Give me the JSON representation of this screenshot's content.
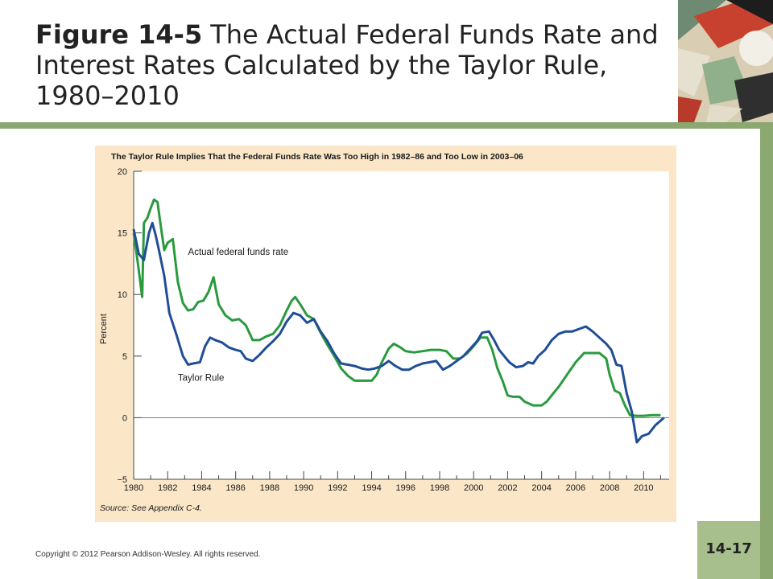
{
  "slide": {
    "figure_label": "Figure 14-5",
    "title": "The Actual Federal Funds Rate and Interest Rates Calculated by the Taylor Rule, 1980–2010",
    "page_number": "14-17",
    "copyright": "Copyright © 2012 Pearson Addison-Wesley. All rights reserved."
  },
  "colors": {
    "band": "#8aa870",
    "page_box": "#a6bf8c",
    "chart_bg": "#fbe7c8",
    "plot_bg": "#ffffff",
    "federal_funds": "#2a9a3e",
    "taylor": "#1f4e96"
  },
  "chart_data": {
    "type": "line",
    "title": "The Taylor Rule Implies That the Federal Funds Rate Was Too High in 1982–86 and Too Low in 2003–06",
    "xlabel": "",
    "ylabel": "Percent",
    "source": "Source: See Appendix C-4.",
    "xlim": [
      1980,
      2011.5
    ],
    "ylim": [
      -5,
      20
    ],
    "yticks": [
      -5,
      0,
      5,
      10,
      15,
      20
    ],
    "ytick_labels": [
      "−5",
      "0",
      "5",
      "10",
      "15",
      "20"
    ],
    "xticks": [
      1980,
      1982,
      1984,
      1986,
      1988,
      1990,
      1992,
      1994,
      1996,
      1998,
      2000,
      2002,
      2004,
      2006,
      2008,
      2010
    ],
    "xtick_labels": [
      "1980",
      "1982",
      "1984",
      "1986",
      "1988",
      "1990",
      "1992",
      "1994",
      "1996",
      "1998",
      "2000",
      "2002",
      "2004",
      "2006",
      "2008",
      "2010"
    ],
    "zero_line": true,
    "series": [
      {
        "name": "Actual federal funds rate",
        "color": "#2a9a3e",
        "points": [
          [
            1980.0,
            15.0
          ],
          [
            1980.25,
            12.5
          ],
          [
            1980.5,
            9.8
          ],
          [
            1980.6,
            15.8
          ],
          [
            1980.8,
            16.2
          ],
          [
            1981.0,
            17.0
          ],
          [
            1981.2,
            17.7
          ],
          [
            1981.4,
            17.5
          ],
          [
            1981.6,
            15.5
          ],
          [
            1981.8,
            13.6
          ],
          [
            1982.0,
            14.2
          ],
          [
            1982.3,
            14.5
          ],
          [
            1982.6,
            11.0
          ],
          [
            1982.9,
            9.3
          ],
          [
            1983.2,
            8.7
          ],
          [
            1983.5,
            8.8
          ],
          [
            1983.8,
            9.4
          ],
          [
            1984.1,
            9.5
          ],
          [
            1984.4,
            10.2
          ],
          [
            1984.7,
            11.4
          ],
          [
            1985.0,
            9.2
          ],
          [
            1985.4,
            8.3
          ],
          [
            1985.8,
            7.9
          ],
          [
            1986.2,
            8.0
          ],
          [
            1986.6,
            7.5
          ],
          [
            1987.0,
            6.3
          ],
          [
            1987.4,
            6.3
          ],
          [
            1987.8,
            6.6
          ],
          [
            1988.2,
            6.8
          ],
          [
            1988.6,
            7.5
          ],
          [
            1989.0,
            8.7
          ],
          [
            1989.3,
            9.5
          ],
          [
            1989.5,
            9.8
          ],
          [
            1989.8,
            9.2
          ],
          [
            1990.2,
            8.3
          ],
          [
            1990.6,
            8.0
          ],
          [
            1991.0,
            6.9
          ],
          [
            1991.4,
            5.9
          ],
          [
            1991.8,
            5.0
          ],
          [
            1992.2,
            4.0
          ],
          [
            1992.6,
            3.4
          ],
          [
            1993.0,
            3.0
          ],
          [
            1993.5,
            3.0
          ],
          [
            1994.0,
            3.0
          ],
          [
            1994.3,
            3.5
          ],
          [
            1994.6,
            4.5
          ],
          [
            1995.0,
            5.6
          ],
          [
            1995.3,
            6.0
          ],
          [
            1995.7,
            5.7
          ],
          [
            1996.0,
            5.4
          ],
          [
            1996.5,
            5.3
          ],
          [
            1997.0,
            5.4
          ],
          [
            1997.5,
            5.5
          ],
          [
            1998.0,
            5.5
          ],
          [
            1998.4,
            5.4
          ],
          [
            1998.8,
            4.8
          ],
          [
            1999.2,
            4.8
          ],
          [
            1999.6,
            5.2
          ],
          [
            2000.0,
            5.8
          ],
          [
            2000.4,
            6.5
          ],
          [
            2000.8,
            6.5
          ],
          [
            2001.1,
            5.5
          ],
          [
            2001.4,
            4.0
          ],
          [
            2001.7,
            3.0
          ],
          [
            2002.0,
            1.8
          ],
          [
            2002.3,
            1.7
          ],
          [
            2002.7,
            1.7
          ],
          [
            2003.0,
            1.3
          ],
          [
            2003.5,
            1.0
          ],
          [
            2004.0,
            1.0
          ],
          [
            2004.3,
            1.3
          ],
          [
            2004.7,
            2.0
          ],
          [
            2005.0,
            2.5
          ],
          [
            2005.5,
            3.5
          ],
          [
            2006.0,
            4.5
          ],
          [
            2006.5,
            5.25
          ],
          [
            2007.0,
            5.25
          ],
          [
            2007.4,
            5.25
          ],
          [
            2007.8,
            4.8
          ],
          [
            2008.0,
            3.5
          ],
          [
            2008.3,
            2.2
          ],
          [
            2008.6,
            2.0
          ],
          [
            2008.9,
            1.0
          ],
          [
            2009.2,
            0.2
          ],
          [
            2009.6,
            0.15
          ],
          [
            2010.0,
            0.15
          ],
          [
            2010.5,
            0.2
          ],
          [
            2011.0,
            0.2
          ]
        ]
      },
      {
        "name": "Taylor Rule",
        "color": "#1f4e96",
        "points": [
          [
            1980.0,
            15.3
          ],
          [
            1980.3,
            13.3
          ],
          [
            1980.6,
            12.8
          ],
          [
            1980.9,
            15.0
          ],
          [
            1981.1,
            15.8
          ],
          [
            1981.3,
            14.8
          ],
          [
            1981.5,
            13.5
          ],
          [
            1981.8,
            11.5
          ],
          [
            1982.1,
            8.5
          ],
          [
            1982.5,
            6.8
          ],
          [
            1982.9,
            5.0
          ],
          [
            1983.2,
            4.3
          ],
          [
            1983.5,
            4.4
          ],
          [
            1983.9,
            4.5
          ],
          [
            1984.2,
            5.8
          ],
          [
            1984.5,
            6.5
          ],
          [
            1984.8,
            6.3
          ],
          [
            1985.2,
            6.1
          ],
          [
            1985.6,
            5.7
          ],
          [
            1986.0,
            5.5
          ],
          [
            1986.3,
            5.4
          ],
          [
            1986.6,
            4.8
          ],
          [
            1987.0,
            4.6
          ],
          [
            1987.4,
            5.1
          ],
          [
            1987.8,
            5.7
          ],
          [
            1988.2,
            6.2
          ],
          [
            1988.6,
            6.8
          ],
          [
            1989.0,
            7.8
          ],
          [
            1989.4,
            8.5
          ],
          [
            1989.8,
            8.3
          ],
          [
            1990.2,
            7.7
          ],
          [
            1990.6,
            8.0
          ],
          [
            1991.0,
            7.0
          ],
          [
            1991.4,
            6.2
          ],
          [
            1991.8,
            5.2
          ],
          [
            1992.2,
            4.4
          ],
          [
            1992.6,
            4.3
          ],
          [
            1993.0,
            4.2
          ],
          [
            1993.4,
            4.0
          ],
          [
            1993.8,
            3.9
          ],
          [
            1994.2,
            4.0
          ],
          [
            1994.6,
            4.2
          ],
          [
            1995.0,
            4.6
          ],
          [
            1995.4,
            4.2
          ],
          [
            1995.8,
            3.9
          ],
          [
            1996.2,
            3.9
          ],
          [
            1996.6,
            4.2
          ],
          [
            1997.0,
            4.4
          ],
          [
            1997.4,
            4.5
          ],
          [
            1997.8,
            4.6
          ],
          [
            1998.2,
            3.9
          ],
          [
            1998.6,
            4.2
          ],
          [
            1999.0,
            4.6
          ],
          [
            1999.4,
            5.0
          ],
          [
            1999.8,
            5.6
          ],
          [
            2000.2,
            6.2
          ],
          [
            2000.5,
            6.9
          ],
          [
            2000.9,
            7.0
          ],
          [
            2001.2,
            6.3
          ],
          [
            2001.5,
            5.5
          ],
          [
            2001.8,
            5.0
          ],
          [
            2002.1,
            4.5
          ],
          [
            2002.5,
            4.1
          ],
          [
            2002.9,
            4.2
          ],
          [
            2003.2,
            4.5
          ],
          [
            2003.5,
            4.4
          ],
          [
            2003.8,
            5.0
          ],
          [
            2004.2,
            5.5
          ],
          [
            2004.6,
            6.3
          ],
          [
            2005.0,
            6.8
          ],
          [
            2005.4,
            7.0
          ],
          [
            2005.8,
            7.0
          ],
          [
            2006.2,
            7.2
          ],
          [
            2006.6,
            7.4
          ],
          [
            2007.0,
            7.0
          ],
          [
            2007.4,
            6.5
          ],
          [
            2007.8,
            6.0
          ],
          [
            2008.1,
            5.5
          ],
          [
            2008.4,
            4.3
          ],
          [
            2008.7,
            4.2
          ],
          [
            2009.0,
            2.0
          ],
          [
            2009.3,
            0.5
          ],
          [
            2009.6,
            -2.0
          ],
          [
            2009.9,
            -1.5
          ],
          [
            2010.3,
            -1.3
          ],
          [
            2010.7,
            -0.6
          ],
          [
            2011.2,
            0.0
          ]
        ]
      }
    ],
    "annotations": [
      {
        "text": "Actual federal funds rate",
        "x": 1983.2,
        "y": 13.2
      },
      {
        "text": "Taylor Rule",
        "x": 1982.6,
        "y": 3.0
      }
    ]
  }
}
